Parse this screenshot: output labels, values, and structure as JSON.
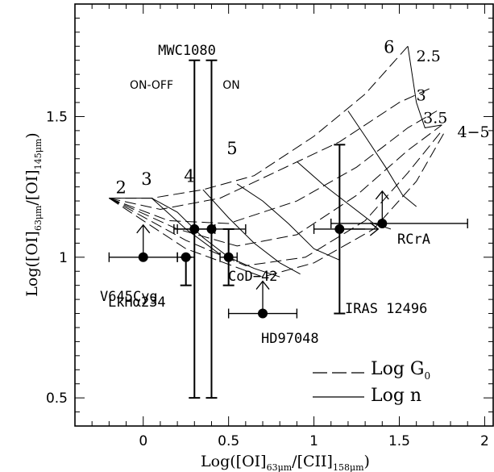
{
  "chart_data": {
    "type": "scatter",
    "xlabel": "Log([OI]63μm/[CII]158μm)",
    "ylabel": "Log([OI]63μm/[OI]145μm)",
    "xlim": [
      -0.4,
      2.05
    ],
    "ylim": [
      0.4,
      1.9
    ],
    "x_ticks": [
      "0",
      "0.5",
      "1",
      "1.5",
      "2"
    ],
    "x_tick_values": [
      0,
      0.5,
      1,
      1.5,
      2
    ],
    "y_ticks": [
      "0.5",
      "1",
      "1.5"
    ],
    "y_tick_values": [
      0.5,
      1,
      1.5
    ],
    "series": [
      {
        "points": [
          {
            "label": "V645Cyg",
            "x": 0.0,
            "y": 1.0,
            "xerr": [
              0.2,
              0.2
            ],
            "yerr": null,
            "lower_limit": true
          },
          {
            "label": "LkHα234",
            "x": 0.25,
            "y": 1.0,
            "xerr": [
              0.05,
              0.05
            ],
            "yerr": [
              0.1,
              0.0
            ],
            "lower_limit": false
          },
          {
            "label": "MWC1080 ON-OFF",
            "x": 0.3,
            "y": 1.1,
            "xerr": [
              0.12,
              0.12
            ],
            "yerr": [
              0.6,
              0.6
            ],
            "lower_limit": false
          },
          {
            "label": "MWC1080 ON",
            "x": 0.4,
            "y": 1.1,
            "xerr": [
              0.2,
              0.2
            ],
            "yerr": [
              0.6,
              0.6
            ],
            "lower_limit": false
          },
          {
            "label": "CoD−42",
            "x": 0.5,
            "y": 1.0,
            "xerr": [
              0.05,
              0.05
            ],
            "yerr": [
              0.1,
              0.1
            ],
            "lower_limit": false
          },
          {
            "label": "HD97048",
            "x": 0.7,
            "y": 0.8,
            "xerr": [
              0.2,
              0.2
            ],
            "yerr": null,
            "lower_limit": true
          },
          {
            "label": "IRAS 12496",
            "x": 1.15,
            "y": 1.1,
            "xerr": [
              0.15,
              0.15
            ],
            "yerr": [
              0.3,
              0.3
            ],
            "lower_limit": false,
            "right_limit": true
          },
          {
            "label": "RCrA",
            "x": 1.4,
            "y": 1.12,
            "xerr": [
              0.3,
              0.5
            ],
            "yerr": null,
            "lower_limit": true
          }
        ]
      }
    ],
    "grid_labels": {
      "log_g0": [
        {
          "text": "2",
          "x": -0.13,
          "y": 1.25
        },
        {
          "text": "3",
          "x": 0.02,
          "y": 1.28
        },
        {
          "text": "4",
          "x": 0.27,
          "y": 1.29
        },
        {
          "text": "5",
          "x": 0.52,
          "y": 1.39
        },
        {
          "text": "6",
          "x": 1.44,
          "y": 1.75
        }
      ],
      "log_n": [
        {
          "text": "2.5",
          "x": 1.6,
          "y": 1.72
        },
        {
          "text": "3",
          "x": 1.6,
          "y": 1.58
        },
        {
          "text": "3.5",
          "x": 1.64,
          "y": 1.5
        },
        {
          "text": "4−5",
          "x": 1.84,
          "y": 1.45
        }
      ]
    },
    "annotations": {
      "mwc_label": "MWC1080",
      "on_off_label": "ON-OFF",
      "on_label": "ON"
    },
    "legend": {
      "position": "bottom-right",
      "entries": [
        {
          "label": "Log G",
          "subscript": "0",
          "style": "dashed"
        },
        {
          "label": "Log n",
          "subscript": "",
          "style": "solid"
        }
      ]
    },
    "model_grid": {
      "dashed_curves": [
        [
          [
            -0.2,
            1.21
          ],
          [
            0.05,
            1.21
          ],
          [
            0.35,
            1.24
          ],
          [
            0.65,
            1.29
          ],
          [
            1.0,
            1.43
          ],
          [
            1.3,
            1.58
          ],
          [
            1.55,
            1.75
          ]
        ],
        [
          [
            -0.2,
            1.21
          ],
          [
            0.1,
            1.17
          ],
          [
            0.45,
            1.21
          ],
          [
            0.8,
            1.31
          ],
          [
            1.15,
            1.41
          ],
          [
            1.5,
            1.55
          ],
          [
            1.68,
            1.6
          ]
        ],
        [
          [
            -0.2,
            1.21
          ],
          [
            0.15,
            1.13
          ],
          [
            0.5,
            1.12
          ],
          [
            0.9,
            1.2
          ],
          [
            1.25,
            1.32
          ],
          [
            1.55,
            1.46
          ],
          [
            1.72,
            1.52
          ]
        ],
        [
          [
            -0.2,
            1.21
          ],
          [
            0.2,
            1.1
          ],
          [
            0.55,
            1.04
          ],
          [
            0.9,
            1.08
          ],
          [
            1.25,
            1.22
          ],
          [
            1.55,
            1.38
          ],
          [
            1.75,
            1.47
          ]
        ],
        [
          [
            -0.2,
            1.21
          ],
          [
            0.25,
            1.06
          ],
          [
            0.6,
            0.97
          ],
          [
            0.95,
            1.0
          ],
          [
            1.3,
            1.13
          ],
          [
            1.55,
            1.3
          ],
          [
            1.75,
            1.45
          ]
        ],
        [
          [
            -0.2,
            1.21
          ],
          [
            0.25,
            1.03
          ],
          [
            0.7,
            0.93
          ],
          [
            1.0,
            0.98
          ],
          [
            1.35,
            1.1
          ],
          [
            1.6,
            1.27
          ],
          [
            1.77,
            1.45
          ]
        ]
      ],
      "solid_curves": [
        [
          [
            -0.2,
            1.21
          ],
          [
            0.05,
            1.21
          ],
          [
            0.25,
            1.1
          ],
          [
            0.45,
            1.01
          ]
        ],
        [
          [
            0.05,
            1.21
          ],
          [
            0.2,
            1.16
          ],
          [
            0.35,
            1.07
          ],
          [
            0.5,
            1.0
          ],
          [
            0.65,
            0.96
          ],
          [
            0.8,
            0.93
          ]
        ],
        [
          [
            0.35,
            1.24
          ],
          [
            0.5,
            1.14
          ],
          [
            0.65,
            1.05
          ],
          [
            0.8,
            0.98
          ],
          [
            0.92,
            0.94
          ]
        ],
        [
          [
            0.55,
            1.26
          ],
          [
            0.7,
            1.2
          ],
          [
            0.85,
            1.12
          ],
          [
            1.0,
            1.03
          ],
          [
            1.15,
            0.99
          ]
        ],
        [
          [
            0.9,
            1.34
          ],
          [
            1.05,
            1.26
          ],
          [
            1.2,
            1.19
          ],
          [
            1.35,
            1.12
          ],
          [
            1.45,
            1.1
          ]
        ],
        [
          [
            1.2,
            1.52
          ],
          [
            1.3,
            1.43
          ],
          [
            1.42,
            1.32
          ],
          [
            1.52,
            1.22
          ],
          [
            1.6,
            1.18
          ]
        ],
        [
          [
            1.55,
            1.75
          ],
          [
            1.6,
            1.55
          ],
          [
            1.65,
            1.46
          ],
          [
            1.75,
            1.47
          ]
        ]
      ]
    }
  }
}
